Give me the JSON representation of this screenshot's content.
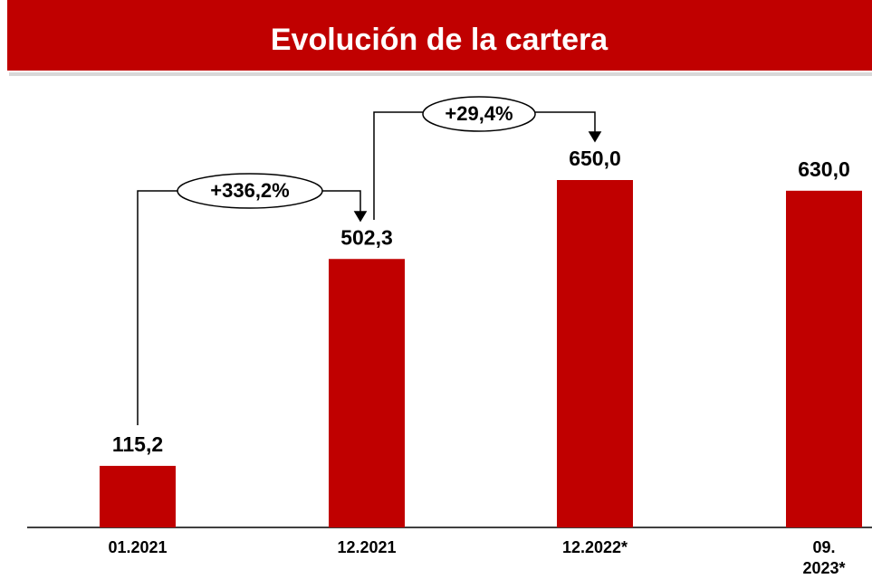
{
  "chart_data": {
    "type": "bar",
    "title": "Evolución de la cartera",
    "categories": [
      "01.2021",
      "12.2021",
      "12.2022*",
      "09.\n2023*"
    ],
    "values": [
      115.2,
      502.3,
      650.0,
      630.0
    ],
    "value_labels": [
      "115,2",
      "502,3",
      "650,0",
      "630,0"
    ],
    "color": "#c00000",
    "annotations": [
      "+336,2%",
      "+29,4%"
    ]
  }
}
